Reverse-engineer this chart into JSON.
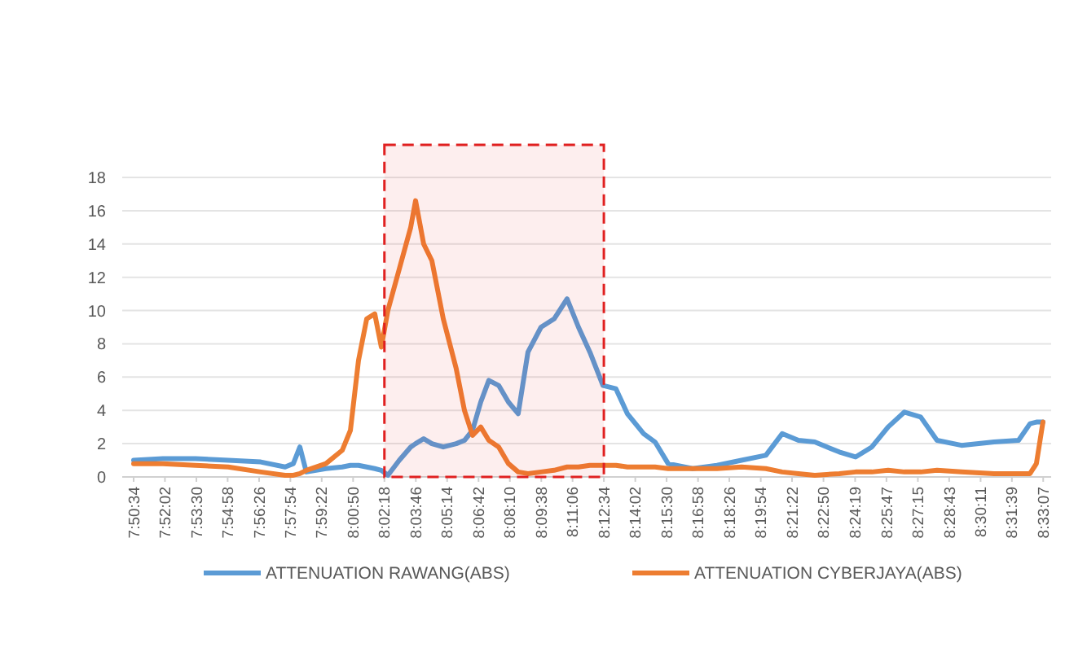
{
  "chart_data": {
    "type": "line",
    "legend": "bottom",
    "grid": "y",
    "ylim": [
      0,
      18
    ],
    "yticks": [
      0,
      2,
      4,
      6,
      8,
      10,
      12,
      14,
      16,
      18
    ],
    "xlim": [
      7.8339,
      8.5581
    ],
    "xticks": [
      {
        "value": 7.8428,
        "label": "7:50:34"
      },
      {
        "value": 7.8672,
        "label": "7:52:02"
      },
      {
        "value": 7.8917,
        "label": "7:53:30"
      },
      {
        "value": 7.9161,
        "label": "7:54:58"
      },
      {
        "value": 7.9406,
        "label": "7:56:26"
      },
      {
        "value": 7.965,
        "label": "7:57:54"
      },
      {
        "value": 7.9894,
        "label": "7:59:22"
      },
      {
        "value": 8.0139,
        "label": "8:00:50"
      },
      {
        "value": 8.0383,
        "label": "8:02:18"
      },
      {
        "value": 8.0628,
        "label": "8:03:46"
      },
      {
        "value": 8.0872,
        "label": "8:05:14"
      },
      {
        "value": 8.1117,
        "label": "8:06:42"
      },
      {
        "value": 8.1361,
        "label": "8:08:10"
      },
      {
        "value": 8.1606,
        "label": "8:09:38"
      },
      {
        "value": 8.185,
        "label": "8:11:06"
      },
      {
        "value": 8.2094,
        "label": "8:12:34"
      },
      {
        "value": 8.2339,
        "label": "8:14:02"
      },
      {
        "value": 8.2583,
        "label": "8:15:30"
      },
      {
        "value": 8.2828,
        "label": "8:16:58"
      },
      {
        "value": 8.3072,
        "label": "8:18:26"
      },
      {
        "value": 8.3317,
        "label": "8:19:54"
      },
      {
        "value": 8.3561,
        "label": "8:21:22"
      },
      {
        "value": 8.3806,
        "label": "8:22:50"
      },
      {
        "value": 8.4053,
        "label": "8:24:19"
      },
      {
        "value": 8.4297,
        "label": "8:25:47"
      },
      {
        "value": 8.4542,
        "label": "8:27:15"
      },
      {
        "value": 8.4786,
        "label": "8:28:43"
      },
      {
        "value": 8.5031,
        "label": "8:30:11"
      },
      {
        "value": 8.5275,
        "label": "8:31:39"
      },
      {
        "value": 8.5519,
        "label": "8:33:07"
      }
    ],
    "x": [
      7.8428,
      7.8656,
      7.8911,
      7.9165,
      7.9419,
      7.9609,
      7.9673,
      7.9724,
      7.9774,
      7.9927,
      8.0054,
      8.0118,
      8.0181,
      8.0245,
      8.0308,
      8.0359,
      8.041,
      8.0499,
      8.0588,
      8.0626,
      8.0689,
      8.0753,
      8.0842,
      8.0943,
      8.1007,
      8.107,
      8.1134,
      8.1197,
      8.1274,
      8.135,
      8.1426,
      8.1502,
      8.1604,
      8.1706,
      8.1807,
      8.1896,
      8.1985,
      8.2087,
      8.2188,
      8.2277,
      8.2404,
      8.2493,
      8.2595,
      8.2786,
      8.2976,
      8.3167,
      8.3357,
      8.3484,
      8.3611,
      8.3738,
      8.3929,
      8.4056,
      8.4183,
      8.431,
      8.4437,
      8.4564,
      8.4691,
      8.4882,
      8.5136,
      8.5327,
      8.5416,
      8.5466,
      8.5517
    ],
    "series": [
      {
        "name": "ATTENUATION RAWANG(ABS)",
        "color": "#5b9bd5",
        "values": [
          1.0,
          1.1,
          1.1,
          1.0,
          0.9,
          0.6,
          0.8,
          1.8,
          0.3,
          0.5,
          0.6,
          0.7,
          0.7,
          0.6,
          0.5,
          0.4,
          0.1,
          1.0,
          1.8,
          2.0,
          2.3,
          2.0,
          1.8,
          2.0,
          2.2,
          2.8,
          4.5,
          5.8,
          5.5,
          4.5,
          3.8,
          7.5,
          9.0,
          9.5,
          10.7,
          9.0,
          7.5,
          5.5,
          5.3,
          3.8,
          2.6,
          2.1,
          0.8,
          0.5,
          0.7,
          1.0,
          1.3,
          2.6,
          2.2,
          2.1,
          1.5,
          1.2,
          1.8,
          3.0,
          3.9,
          3.6,
          2.2,
          1.9,
          2.1,
          2.2,
          3.2,
          3.3,
          3.3
        ]
      },
      {
        "name": "ATTENUATION CYBERJAYA(ABS)",
        "color": "#ed7d31",
        "values": [
          0.8,
          0.8,
          0.7,
          0.6,
          0.3,
          0.1,
          0.1,
          0.2,
          0.4,
          0.8,
          1.6,
          2.8,
          7.0,
          9.5,
          9.8,
          7.8,
          10.0,
          12.5,
          15.0,
          16.6,
          14.0,
          13.0,
          9.5,
          6.5,
          4.0,
          2.5,
          3.0,
          2.2,
          1.8,
          0.8,
          0.3,
          0.2,
          0.3,
          0.4,
          0.6,
          0.6,
          0.7,
          0.7,
          0.7,
          0.6,
          0.6,
          0.6,
          0.5,
          0.5,
          0.5,
          0.6,
          0.5,
          0.3,
          0.2,
          0.1,
          0.2,
          0.3,
          0.3,
          0.4,
          0.3,
          0.3,
          0.4,
          0.3,
          0.2,
          0.2,
          0.2,
          0.8,
          3.3
        ]
      }
    ],
    "bands": [
      {
        "axis": "x",
        "from": 8.0383,
        "to": 8.2094,
        "color": "#e02020"
      }
    ]
  }
}
